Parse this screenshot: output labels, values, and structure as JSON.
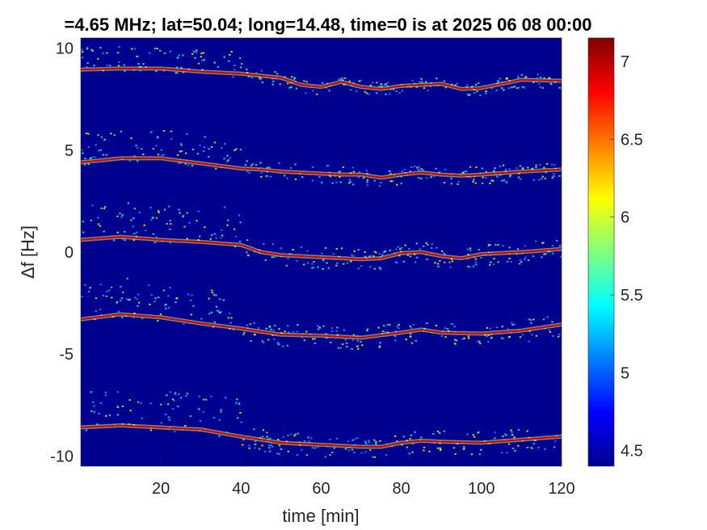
{
  "chart_data": {
    "type": "heatmap",
    "title": "=4.65 MHz;  lat=50.04; long=14.48, time=0 is at 2025 06 08 00:00",
    "xlabel": "time [min]",
    "ylabel": "Δf [Hz]",
    "xlim": [
      0,
      120
    ],
    "ylim": [
      -10.5,
      10.5
    ],
    "x_ticks": [
      20,
      40,
      60,
      80,
      100,
      120
    ],
    "y_ticks": [
      10,
      5,
      0,
      -5,
      -10
    ],
    "colorbar": {
      "range": [
        4.4,
        7.15
      ],
      "ticks": [
        4.5,
        5,
        5.5,
        6,
        6.5,
        7
      ],
      "colormap": "jet"
    },
    "background_color": "#00008f",
    "traces": [
      {
        "name": "",
        "curve": [
          [
            0,
            8.95
          ],
          [
            10,
            9.0
          ],
          [
            20,
            9.0
          ],
          [
            30,
            8.85
          ],
          [
            40,
            8.75
          ],
          [
            50,
            8.55
          ],
          [
            55,
            8.2
          ],
          [
            60,
            8.1
          ],
          [
            65,
            8.35
          ],
          [
            70,
            8.1
          ],
          [
            75,
            8.0
          ],
          [
            80,
            8.15
          ],
          [
            90,
            8.25
          ],
          [
            95,
            8.0
          ],
          [
            100,
            8.05
          ],
          [
            105,
            8.25
          ],
          [
            110,
            8.45
          ],
          [
            120,
            8.4
          ]
        ],
        "spread": 0.7
      },
      {
        "name": "",
        "curve": [
          [
            0,
            4.4
          ],
          [
            10,
            4.6
          ],
          [
            20,
            4.6
          ],
          [
            30,
            4.35
          ],
          [
            40,
            4.1
          ],
          [
            45,
            4.05
          ],
          [
            50,
            3.95
          ],
          [
            55,
            3.9
          ],
          [
            60,
            3.85
          ],
          [
            65,
            3.8
          ],
          [
            70,
            3.8
          ],
          [
            75,
            3.65
          ],
          [
            80,
            3.8
          ],
          [
            85,
            3.9
          ],
          [
            90,
            3.8
          ],
          [
            95,
            3.75
          ],
          [
            100,
            3.8
          ],
          [
            110,
            3.95
          ],
          [
            120,
            4.05
          ]
        ],
        "spread": 0.9
      },
      {
        "name": "",
        "curve": [
          [
            0,
            0.6
          ],
          [
            10,
            0.75
          ],
          [
            20,
            0.6
          ],
          [
            30,
            0.5
          ],
          [
            40,
            0.35
          ],
          [
            45,
            0.0
          ],
          [
            50,
            -0.15
          ],
          [
            60,
            -0.25
          ],
          [
            70,
            -0.35
          ],
          [
            75,
            -0.3
          ],
          [
            80,
            -0.05
          ],
          [
            85,
            0.0
          ],
          [
            90,
            -0.2
          ],
          [
            95,
            -0.3
          ],
          [
            100,
            -0.1
          ],
          [
            110,
            0.0
          ],
          [
            120,
            0.15
          ]
        ],
        "spread": 1.1
      },
      {
        "name": "",
        "curve": [
          [
            0,
            -3.3
          ],
          [
            10,
            -3.05
          ],
          [
            20,
            -3.2
          ],
          [
            30,
            -3.5
          ],
          [
            40,
            -3.75
          ],
          [
            50,
            -4.05
          ],
          [
            60,
            -4.1
          ],
          [
            70,
            -4.2
          ],
          [
            80,
            -3.95
          ],
          [
            85,
            -3.8
          ],
          [
            90,
            -3.95
          ],
          [
            100,
            -4.0
          ],
          [
            110,
            -3.85
          ],
          [
            120,
            -3.55
          ]
        ],
        "spread": 1.1
      },
      {
        "name": "",
        "curve": [
          [
            0,
            -8.6
          ],
          [
            10,
            -8.5
          ],
          [
            20,
            -8.6
          ],
          [
            30,
            -8.7
          ],
          [
            40,
            -9.05
          ],
          [
            50,
            -9.35
          ],
          [
            60,
            -9.45
          ],
          [
            70,
            -9.55
          ],
          [
            75,
            -9.55
          ],
          [
            80,
            -9.35
          ],
          [
            85,
            -9.25
          ],
          [
            90,
            -9.3
          ],
          [
            100,
            -9.35
          ],
          [
            110,
            -9.2
          ],
          [
            120,
            -9.05
          ]
        ],
        "spread": 1.1
      }
    ]
  }
}
